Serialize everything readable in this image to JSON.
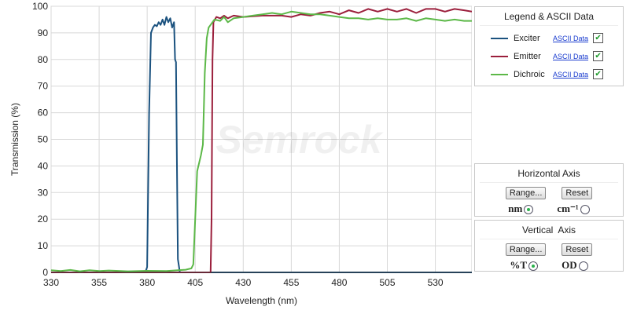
{
  "chart_data": {
    "type": "line",
    "xlabel": "Wavelength (nm)",
    "ylabel": "Transmission (%)",
    "xlim": [
      330,
      549
    ],
    "ylim": [
      0,
      100
    ],
    "xticks": [
      330,
      355,
      380,
      405,
      430,
      455,
      480,
      505,
      530
    ],
    "yticks": [
      0,
      10,
      20,
      30,
      40,
      50,
      60,
      70,
      80,
      90,
      100
    ],
    "grid": true,
    "legend_placement": "right",
    "watermark": "Semrock",
    "series": [
      {
        "name": "Exciter",
        "color": "#1b527f",
        "points": [
          [
            330,
            0
          ],
          [
            379,
            0
          ],
          [
            380,
            2
          ],
          [
            381,
            60
          ],
          [
            382,
            90
          ],
          [
            383,
            92
          ],
          [
            384,
            93
          ],
          [
            385,
            92.5
          ],
          [
            386,
            94
          ],
          [
            387,
            93
          ],
          [
            388,
            95
          ],
          [
            389,
            93
          ],
          [
            390,
            96
          ],
          [
            391,
            94
          ],
          [
            392,
            95.5
          ],
          [
            393,
            92
          ],
          [
            394,
            94
          ],
          [
            394.5,
            80
          ],
          [
            395,
            79
          ],
          [
            395.5,
            40
          ],
          [
            396,
            5
          ],
          [
            397,
            0
          ],
          [
            549,
            0
          ]
        ]
      },
      {
        "name": "Emitter",
        "color": "#9b1f3c",
        "points": [
          [
            330,
            0
          ],
          [
            413,
            0
          ],
          [
            413.5,
            20
          ],
          [
            414,
            80
          ],
          [
            414.5,
            94
          ],
          [
            416,
            96
          ],
          [
            418,
            95.5
          ],
          [
            420,
            96.5
          ],
          [
            422,
            95.5
          ],
          [
            425,
            96.5
          ],
          [
            430,
            96
          ],
          [
            440,
            96.5
          ],
          [
            450,
            96.5
          ],
          [
            455,
            96
          ],
          [
            460,
            97
          ],
          [
            465,
            96.5
          ],
          [
            470,
            97.5
          ],
          [
            475,
            98
          ],
          [
            480,
            97
          ],
          [
            485,
            98.5
          ],
          [
            490,
            97.5
          ],
          [
            495,
            99
          ],
          [
            500,
            98
          ],
          [
            505,
            99
          ],
          [
            510,
            98
          ],
          [
            515,
            99
          ],
          [
            520,
            97.5
          ],
          [
            525,
            99
          ],
          [
            530,
            99
          ],
          [
            535,
            98
          ],
          [
            540,
            99
          ],
          [
            545,
            98.5
          ],
          [
            549,
            98
          ]
        ]
      },
      {
        "name": "Dichroic",
        "color": "#5cb848",
        "points": [
          [
            330,
            0.8
          ],
          [
            335,
            0.5
          ],
          [
            340,
            0.9
          ],
          [
            345,
            0.4
          ],
          [
            350,
            0.8
          ],
          [
            355,
            0.5
          ],
          [
            360,
            0.7
          ],
          [
            370,
            0.4
          ],
          [
            380,
            0.6
          ],
          [
            390,
            0.5
          ],
          [
            396,
            0.8
          ],
          [
            400,
            1
          ],
          [
            403,
            1.5
          ],
          [
            404,
            3
          ],
          [
            405,
            20
          ],
          [
            406,
            38
          ],
          [
            407,
            41
          ],
          [
            408,
            44
          ],
          [
            409,
            48
          ],
          [
            410,
            75
          ],
          [
            411,
            88
          ],
          [
            412,
            92
          ],
          [
            413,
            93
          ],
          [
            415,
            95
          ],
          [
            418,
            94.5
          ],
          [
            420,
            96
          ],
          [
            422,
            94
          ],
          [
            425,
            95.5
          ],
          [
            430,
            96
          ],
          [
            435,
            96.5
          ],
          [
            440,
            97
          ],
          [
            445,
            97.5
          ],
          [
            450,
            97
          ],
          [
            455,
            98
          ],
          [
            460,
            97.5
          ],
          [
            465,
            97
          ],
          [
            470,
            97
          ],
          [
            475,
            96.5
          ],
          [
            480,
            96
          ],
          [
            485,
            95.5
          ],
          [
            490,
            95.5
          ],
          [
            495,
            95
          ],
          [
            500,
            95.5
          ],
          [
            505,
            95
          ],
          [
            510,
            95
          ],
          [
            515,
            95.5
          ],
          [
            520,
            94.5
          ],
          [
            525,
            95.5
          ],
          [
            530,
            95
          ],
          [
            535,
            94.5
          ],
          [
            540,
            95
          ],
          [
            545,
            94.5
          ],
          [
            549,
            94.5
          ]
        ]
      }
    ]
  },
  "legend": {
    "title": "Legend & ASCII Data",
    "items": [
      {
        "label": "Exciter",
        "link": "ASCII Data",
        "checked": true,
        "color": "#1b527f"
      },
      {
        "label": "Emitter",
        "link": "ASCII Data",
        "checked": true,
        "color": "#9b1f3c"
      },
      {
        "label": "Dichroic",
        "link": "ASCII Data",
        "checked": true,
        "color": "#5cb848"
      }
    ],
    "check_glyph": "✔"
  },
  "horizontal_axis": {
    "title": "Horizontal Axis",
    "range_label": "Range...",
    "reset_label": "Reset",
    "unit1": "nm",
    "unit2": "cm⁻¹",
    "selected": "nm"
  },
  "vertical_axis": {
    "title": "Vertical  Axis",
    "range_label": "Range...",
    "reset_label": "Reset",
    "unit1": "%T",
    "unit2": "OD",
    "selected": "%T"
  }
}
